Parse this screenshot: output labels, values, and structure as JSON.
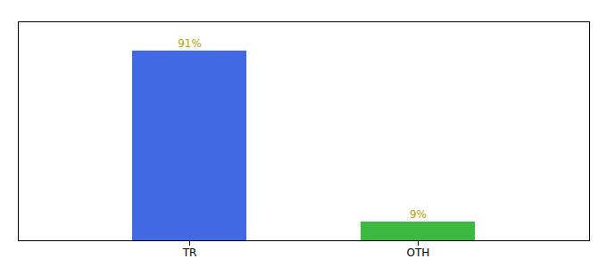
{
  "chart_data": {
    "type": "bar",
    "categories": [
      "TR",
      "OTH"
    ],
    "values": [
      91,
      9
    ],
    "value_labels": [
      "91%",
      "9%"
    ],
    "colors": [
      "#4169e1",
      "#3cb843"
    ],
    "ylim": [
      0,
      105
    ],
    "yticks": [],
    "data_labels": true,
    "tick_labels": "x",
    "grid": false
  }
}
